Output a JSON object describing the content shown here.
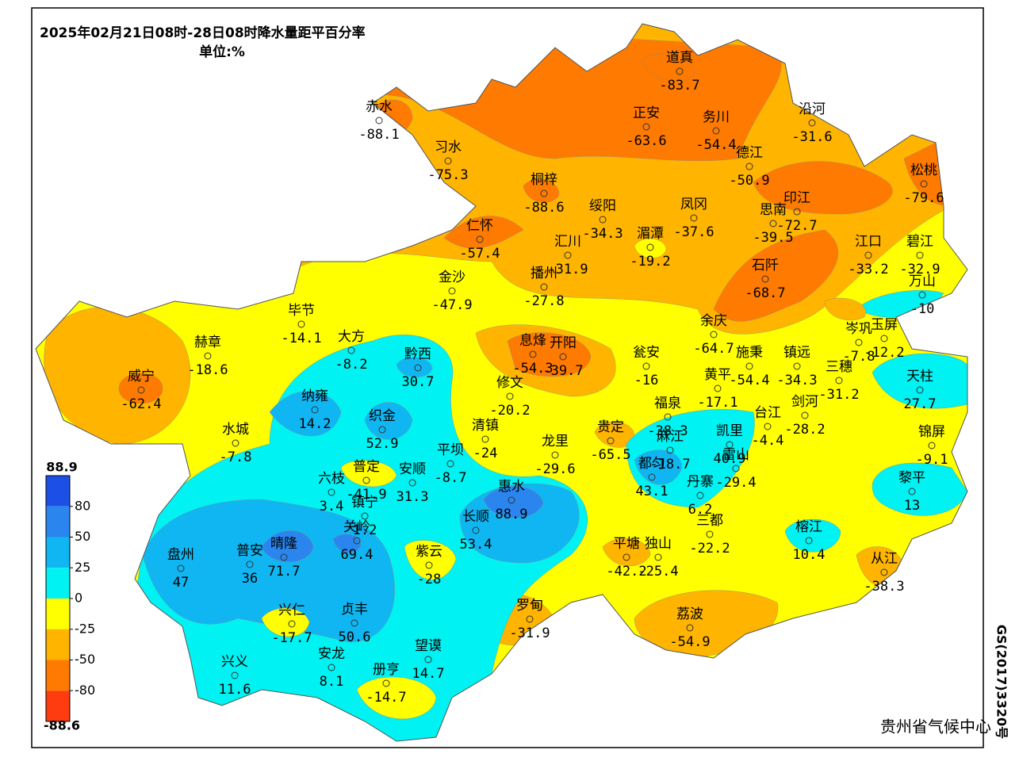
{
  "header": {
    "title": "2025年02月21日08时-28日08时降水量距平百分率",
    "unit": "单位:%"
  },
  "legend": {
    "max": 88.9,
    "min": -88.6,
    "ticks": [
      80,
      50,
      25,
      0,
      -25,
      -50,
      -80
    ],
    "colors": [
      "#1c4fe6",
      "#2a86ee",
      "#10b6f2",
      "#00f2f2",
      "#ffff00",
      "#ffb400",
      "#ff7a00",
      "#ff3c10"
    ]
  },
  "stations": [
    {
      "name": "道真",
      "value": -83.7
    },
    {
      "name": "赤水",
      "value": -88.1
    },
    {
      "name": "习水",
      "value": -75.3
    },
    {
      "name": "桐梓",
      "value": -88.6
    },
    {
      "name": "正安",
      "value": -63.6
    },
    {
      "name": "务川",
      "value": -54.4
    },
    {
      "name": "沿河",
      "value": -31.6
    },
    {
      "name": "德江",
      "value": -50.9
    },
    {
      "name": "松桃",
      "value": -79.6
    },
    {
      "name": "仁怀",
      "value": -57.4
    },
    {
      "name": "绥阳",
      "value": -34.3
    },
    {
      "name": "凤冈",
      "value": -37.6
    },
    {
      "name": "思南",
      "value": -39.5
    },
    {
      "name": "印江",
      "value": -72.7
    },
    {
      "name": "汇川",
      "value": -31.9
    },
    {
      "name": "湄潭",
      "value": -19.2
    },
    {
      "name": "江口",
      "value": -33.2
    },
    {
      "name": "碧江",
      "value": -32.9
    },
    {
      "name": "播州",
      "value": -27.8
    },
    {
      "name": "金沙",
      "value": -47.9
    },
    {
      "name": "石阡",
      "value": -68.7
    },
    {
      "name": "万山",
      "value": -10
    },
    {
      "name": "毕节",
      "value": -14.1
    },
    {
      "name": "余庆",
      "value": -64.7
    },
    {
      "name": "赫章",
      "value": -18.6
    },
    {
      "name": "大方",
      "value": -8.2
    },
    {
      "name": "黔西",
      "value": 30.7
    },
    {
      "name": "息烽",
      "value": -54.3
    },
    {
      "name": "开阳",
      "value": -39.7
    },
    {
      "name": "瓮安",
      "value": -16
    },
    {
      "name": "施秉",
      "value": -54.4
    },
    {
      "name": "镇远",
      "value": -34.3
    },
    {
      "name": "岑巩",
      "value": -7.8
    },
    {
      "name": "玉屏",
      "value": -12.2
    },
    {
      "name": "三穗",
      "value": -31.2
    },
    {
      "name": "天柱",
      "value": 27.7
    },
    {
      "name": "威宁",
      "value": -62.4
    },
    {
      "name": "修文",
      "value": -20.2
    },
    {
      "name": "黄平",
      "value": -17.1
    },
    {
      "name": "剑河",
      "value": -28.2
    },
    {
      "name": "纳雍",
      "value": 14.2
    },
    {
      "name": "织金",
      "value": 52.9
    },
    {
      "name": "清镇",
      "value": -24
    },
    {
      "name": "龙里",
      "value": -29.6
    },
    {
      "name": "贵定",
      "value": -65.5
    },
    {
      "name": "福泉",
      "value": -38.3
    },
    {
      "name": "麻江",
      "value": -18.7
    },
    {
      "name": "都匀",
      "value": 43.1
    },
    {
      "name": "凯里",
      "value": 40.9
    },
    {
      "name": "台江",
      "value": -4.4
    },
    {
      "name": "雷山",
      "value": -29.4
    },
    {
      "name": "丹寨",
      "value": 6.2
    },
    {
      "name": "三都",
      "value": -22.2
    },
    {
      "name": "锦屏",
      "value": -9.1
    },
    {
      "name": "黎平",
      "value": 13
    },
    {
      "name": "榕江",
      "value": 10.4
    },
    {
      "name": "从江",
      "value": -38.3
    },
    {
      "name": "水城",
      "value": -7.8
    },
    {
      "name": "普定",
      "value": -41.9
    },
    {
      "name": "安顺",
      "value": 31.3
    },
    {
      "name": "平坝",
      "value": -8.7
    },
    {
      "name": "六枝",
      "value": 3.4
    },
    {
      "name": "镇宁",
      "value": 1.2
    },
    {
      "name": "关岭",
      "value": 69.4
    },
    {
      "name": "惠水",
      "value": 88.9
    },
    {
      "name": "长顺",
      "value": 53.4
    },
    {
      "name": "晴隆",
      "value": 71.7
    },
    {
      "name": "普安",
      "value": 36
    },
    {
      "name": "盘州",
      "value": 47
    },
    {
      "name": "紫云",
      "value": -28
    },
    {
      "name": "平塘",
      "value": -42.2
    },
    {
      "name": "独山",
      "value": -25.4
    },
    {
      "name": "兴仁",
      "value": -17.7
    },
    {
      "name": "贞丰",
      "value": 50.6
    },
    {
      "name": "罗甸",
      "value": -31.9
    },
    {
      "name": "荔波",
      "value": -54.9
    },
    {
      "name": "兴义",
      "value": 11.6
    },
    {
      "name": "安龙",
      "value": 8.1
    },
    {
      "name": "望谟",
      "value": 14.7
    },
    {
      "name": "册亨",
      "value": -14.7
    }
  ],
  "footer": {
    "credit": "贵州省气候中心",
    "approval": "GS(2017)3320号"
  }
}
